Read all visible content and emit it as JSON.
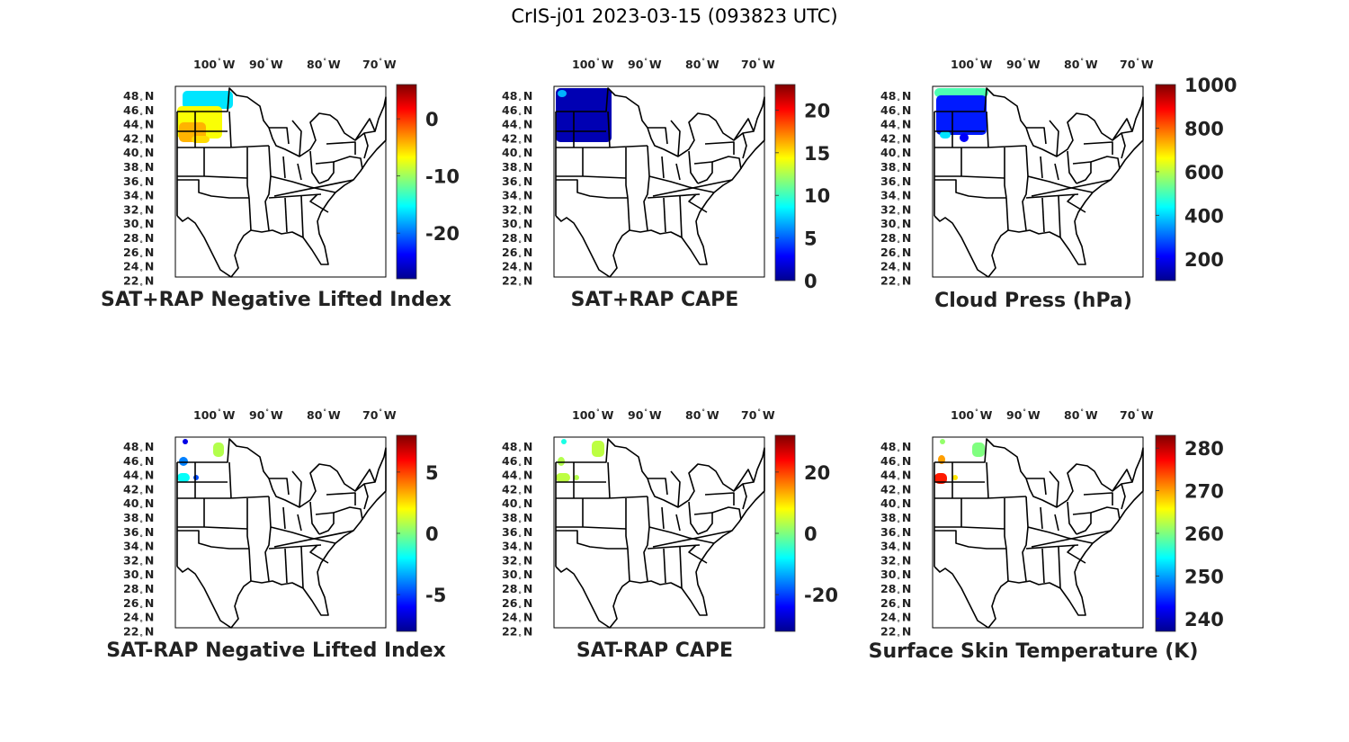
{
  "figure_title": "CrIS-j01 2023-03-15 (093823 UTC)",
  "lon_ticks": [
    {
      "deg": "100",
      "unit": "W"
    },
    {
      "deg": "90",
      "unit": "W"
    },
    {
      "deg": "80",
      "unit": "W"
    },
    {
      "deg": "70",
      "unit": "W"
    }
  ],
  "lat_ticks": [
    {
      "deg": "48",
      "unit": "N"
    },
    {
      "deg": "46",
      "unit": "N"
    },
    {
      "deg": "44",
      "unit": "N"
    },
    {
      "deg": "42",
      "unit": "N"
    },
    {
      "deg": "40",
      "unit": "N"
    },
    {
      "deg": "38",
      "unit": "N"
    },
    {
      "deg": "36",
      "unit": "N"
    },
    {
      "deg": "34",
      "unit": "N"
    },
    {
      "deg": "32",
      "unit": "N"
    },
    {
      "deg": "30",
      "unit": "N"
    },
    {
      "deg": "28",
      "unit": "N"
    },
    {
      "deg": "26",
      "unit": "N"
    },
    {
      "deg": "24",
      "unit": "N"
    },
    {
      "deg": "22",
      "unit": "N"
    }
  ],
  "colormap": "jet",
  "panels": [
    {
      "title": "SAT+RAP Negative Lifted Index",
      "cbar": {
        "min": -28,
        "max": 6,
        "ticks": [
          0,
          -10,
          -20
        ]
      }
    },
    {
      "title": "SAT+RAP CAPE",
      "cbar": {
        "min": 0,
        "max": 23,
        "ticks": [
          20,
          15,
          10,
          5,
          0
        ]
      }
    },
    {
      "title": "Cloud Press (hPa)",
      "cbar": {
        "min": 100,
        "max": 1000,
        "ticks": [
          1000,
          800,
          600,
          400,
          200
        ]
      }
    },
    {
      "title": "SAT-RAP Negative Lifted Index",
      "cbar": {
        "min": -8,
        "max": 8,
        "ticks": [
          5,
          0,
          -5
        ]
      }
    },
    {
      "title": "SAT-RAP CAPE",
      "cbar": {
        "min": -32,
        "max": 32,
        "ticks": [
          20,
          0,
          -20
        ]
      }
    },
    {
      "title": "Surface Skin Temperature (K)",
      "cbar": {
        "min": 237,
        "max": 283,
        "ticks": [
          280,
          270,
          260,
          250,
          240
        ]
      }
    }
  ]
}
